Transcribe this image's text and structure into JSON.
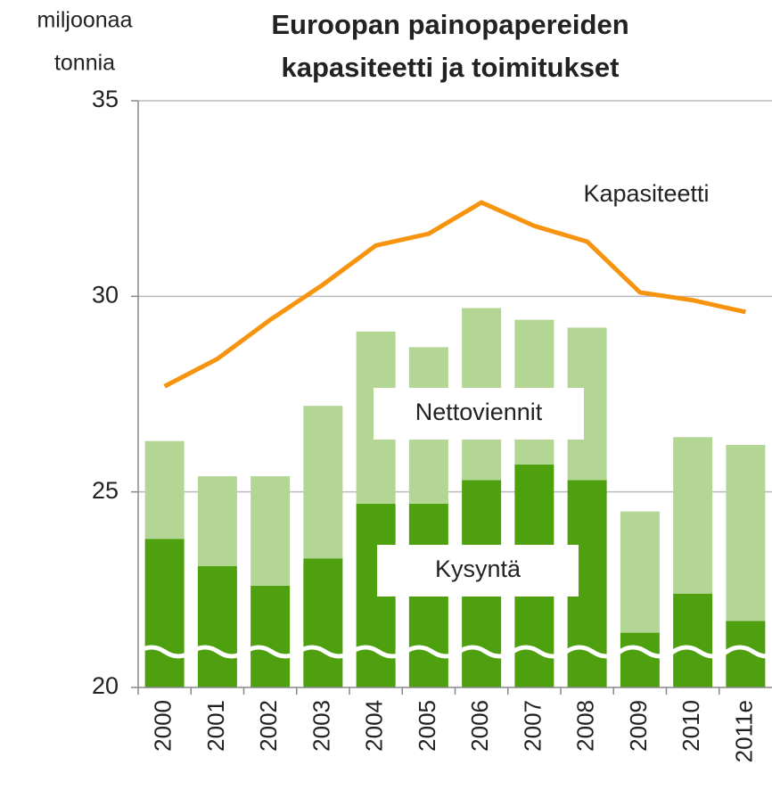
{
  "chart_data": {
    "type": "bar_line",
    "title": [
      "Euroopan painopapereiden",
      "kapasiteetti ja toimitukset"
    ],
    "y_label": [
      "miljoonaa",
      "tonnia"
    ],
    "categories": [
      "2000",
      "2001",
      "2002",
      "2003",
      "2004",
      "2005",
      "2006",
      "2007",
      "2008",
      "2009",
      "2010",
      "2011e"
    ],
    "series": [
      {
        "name": "Kysyntä",
        "color": "#4ea00f",
        "kind": "bar",
        "values": [
          23.8,
          23.1,
          22.6,
          23.3,
          24.7,
          24.7,
          25.3,
          25.7,
          25.3,
          21.4,
          22.4,
          21.7
        ]
      },
      {
        "name": "Nettoviennit",
        "color": "#b3d695",
        "kind": "bar",
        "values": [
          2.5,
          2.3,
          2.8,
          3.9,
          4.4,
          4.0,
          4.4,
          3.7,
          3.9,
          3.1,
          4.0,
          4.5
        ]
      },
      {
        "name": "Kapasiteetti",
        "color": "#f7940f",
        "kind": "line",
        "values": [
          27.7,
          28.4,
          29.4,
          30.3,
          31.3,
          31.6,
          32.4,
          31.8,
          31.4,
          30.1,
          29.9,
          29.6
        ]
      }
    ],
    "ylim": [
      20,
      35
    ],
    "yticks": [
      20,
      25,
      30,
      35
    ],
    "grid": true
  }
}
